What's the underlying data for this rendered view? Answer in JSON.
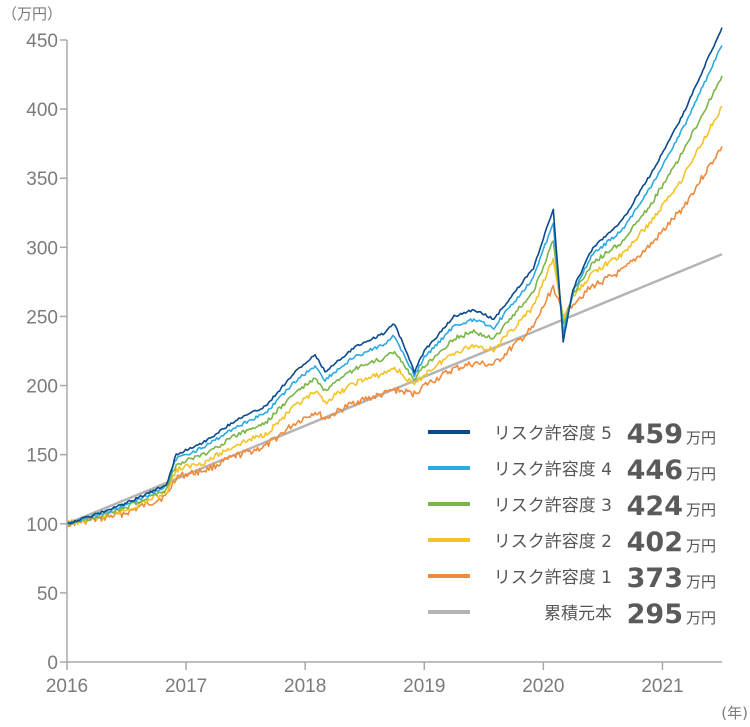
{
  "chart_data": {
    "type": "line",
    "y_unit": "（万円）",
    "x_unit": "(年)",
    "ylim": [
      0,
      450
    ],
    "yticks": [
      0,
      50,
      100,
      150,
      200,
      250,
      300,
      350,
      400,
      450
    ],
    "xlim": [
      "2016-01",
      "2021-07"
    ],
    "xticks": [
      "2016",
      "2017",
      "2018",
      "2019",
      "2020",
      "2021"
    ],
    "grid": false,
    "legend_position": "bottom-right",
    "value_unit": "万円",
    "principal": {
      "name": "累積元本",
      "color": "#b4b4b4",
      "start": [
        "2016-01",
        100
      ],
      "end": [
        "2021-07",
        295
      ],
      "final_value": "295"
    },
    "series": [
      {
        "name": "リスク許容度 5",
        "color": "#0b4a8c",
        "final_value": "459",
        "points": [
          [
            "2016-01",
            100
          ],
          [
            "2016-04",
            107
          ],
          [
            "2016-07",
            115
          ],
          [
            "2016-11",
            128
          ],
          [
            "2016-12",
            150
          ],
          [
            "2017-03",
            160
          ],
          [
            "2017-06",
            175
          ],
          [
            "2017-09",
            185
          ],
          [
            "2017-12",
            210
          ],
          [
            "2018-02",
            222
          ],
          [
            "2018-03",
            210
          ],
          [
            "2018-06",
            228
          ],
          [
            "2018-09",
            238
          ],
          [
            "2018-10",
            245
          ],
          [
            "2018-12",
            210
          ],
          [
            "2019-01",
            225
          ],
          [
            "2019-04",
            250
          ],
          [
            "2019-06",
            255
          ],
          [
            "2019-08",
            248
          ],
          [
            "2019-12",
            285
          ],
          [
            "2020-02",
            328
          ],
          [
            "2020-03",
            232
          ],
          [
            "2020-04",
            270
          ],
          [
            "2020-06",
            300
          ],
          [
            "2020-09",
            320
          ],
          [
            "2020-12",
            355
          ],
          [
            "2021-03",
            395
          ],
          [
            "2021-07",
            459
          ]
        ]
      },
      {
        "name": "リスク許容度 4",
        "color": "#2daae1",
        "final_value": "446",
        "points": [
          [
            "2016-01",
            100
          ],
          [
            "2016-04",
            106
          ],
          [
            "2016-07",
            114
          ],
          [
            "2016-11",
            127
          ],
          [
            "2016-12",
            147
          ],
          [
            "2017-03",
            156
          ],
          [
            "2017-06",
            170
          ],
          [
            "2017-09",
            180
          ],
          [
            "2017-12",
            203
          ],
          [
            "2018-02",
            214
          ],
          [
            "2018-03",
            204
          ],
          [
            "2018-06",
            221
          ],
          [
            "2018-09",
            230
          ],
          [
            "2018-10",
            236
          ],
          [
            "2018-12",
            207
          ],
          [
            "2019-01",
            220
          ],
          [
            "2019-04",
            243
          ],
          [
            "2019-06",
            248
          ],
          [
            "2019-08",
            242
          ],
          [
            "2019-12",
            278
          ],
          [
            "2020-02",
            318
          ],
          [
            "2020-03",
            238
          ],
          [
            "2020-04",
            268
          ],
          [
            "2020-06",
            295
          ],
          [
            "2020-09",
            313
          ],
          [
            "2020-12",
            346
          ],
          [
            "2021-03",
            385
          ],
          [
            "2021-07",
            446
          ]
        ]
      },
      {
        "name": "リスク許容度 3",
        "color": "#7ab547",
        "final_value": "424",
        "points": [
          [
            "2016-01",
            100
          ],
          [
            "2016-04",
            105
          ],
          [
            "2016-07",
            112
          ],
          [
            "2016-11",
            125
          ],
          [
            "2016-12",
            143
          ],
          [
            "2017-03",
            151
          ],
          [
            "2017-06",
            164
          ],
          [
            "2017-09",
            173
          ],
          [
            "2017-12",
            195
          ],
          [
            "2018-02",
            205
          ],
          [
            "2018-03",
            196
          ],
          [
            "2018-06",
            212
          ],
          [
            "2018-09",
            220
          ],
          [
            "2018-10",
            225
          ],
          [
            "2018-12",
            204
          ],
          [
            "2019-01",
            214
          ],
          [
            "2019-04",
            234
          ],
          [
            "2019-06",
            239
          ],
          [
            "2019-08",
            234
          ],
          [
            "2019-12",
            268
          ],
          [
            "2020-02",
            305
          ],
          [
            "2020-03",
            243
          ],
          [
            "2020-04",
            266
          ],
          [
            "2020-06",
            289
          ],
          [
            "2020-09",
            304
          ],
          [
            "2020-12",
            333
          ],
          [
            "2021-03",
            368
          ],
          [
            "2021-07",
            424
          ]
        ]
      },
      {
        "name": "リスク許容度 2",
        "color": "#f5c228",
        "final_value": "402",
        "points": [
          [
            "2016-01",
            100
          ],
          [
            "2016-04",
            104
          ],
          [
            "2016-07",
            110
          ],
          [
            "2016-11",
            123
          ],
          [
            "2016-12",
            139
          ],
          [
            "2017-03",
            145
          ],
          [
            "2017-06",
            157
          ],
          [
            "2017-09",
            165
          ],
          [
            "2017-12",
            185
          ],
          [
            "2018-02",
            195
          ],
          [
            "2018-03",
            188
          ],
          [
            "2018-06",
            202
          ],
          [
            "2018-09",
            209
          ],
          [
            "2018-10",
            213
          ],
          [
            "2018-12",
            200
          ],
          [
            "2019-01",
            208
          ],
          [
            "2019-04",
            224
          ],
          [
            "2019-06",
            229
          ],
          [
            "2019-08",
            226
          ],
          [
            "2019-12",
            257
          ],
          [
            "2020-02",
            292
          ],
          [
            "2020-03",
            248
          ],
          [
            "2020-04",
            264
          ],
          [
            "2020-06",
            282
          ],
          [
            "2020-09",
            295
          ],
          [
            "2020-12",
            320
          ],
          [
            "2021-03",
            350
          ],
          [
            "2021-07",
            402
          ]
        ]
      },
      {
        "name": "リスク許容度 1",
        "color": "#f08a3c",
        "final_value": "373",
        "points": [
          [
            "2016-01",
            100
          ],
          [
            "2016-04",
            103
          ],
          [
            "2016-07",
            108
          ],
          [
            "2016-11",
            120
          ],
          [
            "2016-12",
            134
          ],
          [
            "2017-03",
            139
          ],
          [
            "2017-06",
            149
          ],
          [
            "2017-09",
            156
          ],
          [
            "2017-12",
            173
          ],
          [
            "2018-02",
            181
          ],
          [
            "2018-03",
            176
          ],
          [
            "2018-06",
            188
          ],
          [
            "2018-09",
            194
          ],
          [
            "2018-10",
            197
          ],
          [
            "2018-12",
            194
          ],
          [
            "2019-01",
            200
          ],
          [
            "2019-04",
            212
          ],
          [
            "2019-06",
            216
          ],
          [
            "2019-08",
            215
          ],
          [
            "2019-12",
            242
          ],
          [
            "2020-02",
            272
          ],
          [
            "2020-03",
            250
          ],
          [
            "2020-04",
            260
          ],
          [
            "2020-06",
            272
          ],
          [
            "2020-09",
            283
          ],
          [
            "2020-12",
            303
          ],
          [
            "2021-03",
            328
          ],
          [
            "2021-07",
            373
          ]
        ]
      }
    ]
  }
}
